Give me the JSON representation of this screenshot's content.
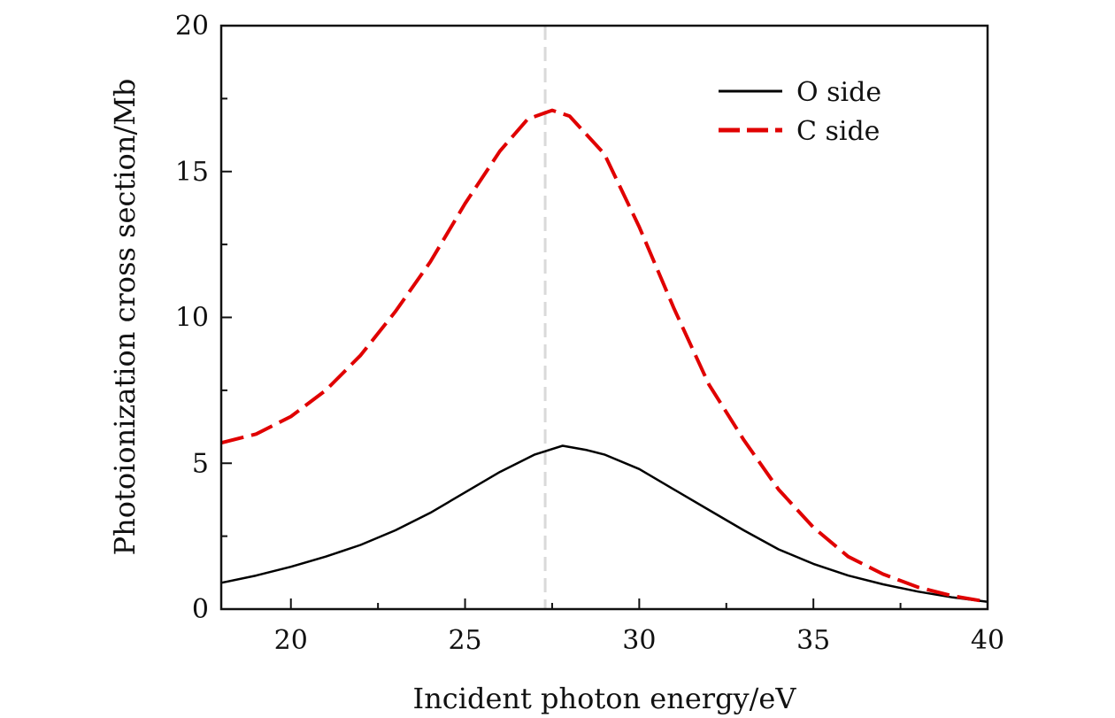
{
  "chart_data": {
    "type": "line",
    "title": "",
    "xlabel": "Incident photon energy/eV",
    "ylabel": "Photoionization cross section/Mb",
    "xlim": [
      18,
      40
    ],
    "ylim": [
      0,
      20
    ],
    "xticks": [
      "20",
      "25",
      "30",
      "35",
      "40"
    ],
    "yticks": [
      "0",
      "5",
      "10",
      "15",
      "20"
    ],
    "grid": false,
    "legend_position": "top-right",
    "reference_line": {
      "x": 27.3,
      "style": "dashed",
      "color": "#d9d9d9"
    },
    "series": [
      {
        "name": "O side",
        "color": "#000000",
        "dash": "solid",
        "x": [
          18,
          19,
          20,
          21,
          22,
          23,
          24,
          25,
          26,
          27,
          27.8,
          28.5,
          29,
          30,
          31,
          32,
          33,
          34,
          35,
          36,
          37,
          38,
          39,
          40
        ],
        "y": [
          0.9,
          1.15,
          1.45,
          1.8,
          2.2,
          2.7,
          3.3,
          4.0,
          4.7,
          5.3,
          5.6,
          5.45,
          5.3,
          4.8,
          4.1,
          3.4,
          2.7,
          2.05,
          1.55,
          1.15,
          0.85,
          0.6,
          0.4,
          0.25
        ]
      },
      {
        "name": "C side",
        "color": "#e00000",
        "dash": "dashed",
        "x": [
          18,
          19,
          20,
          21,
          22,
          23,
          24,
          25,
          26,
          26.8,
          27.5,
          28,
          29,
          30,
          31,
          32,
          33,
          34,
          35,
          36,
          37,
          38,
          39,
          40
        ],
        "y": [
          5.7,
          6.0,
          6.6,
          7.5,
          8.7,
          10.2,
          11.9,
          13.9,
          15.7,
          16.8,
          17.1,
          16.9,
          15.6,
          13.1,
          10.3,
          7.7,
          5.8,
          4.1,
          2.8,
          1.8,
          1.2,
          0.75,
          0.45,
          0.25
        ]
      }
    ]
  }
}
